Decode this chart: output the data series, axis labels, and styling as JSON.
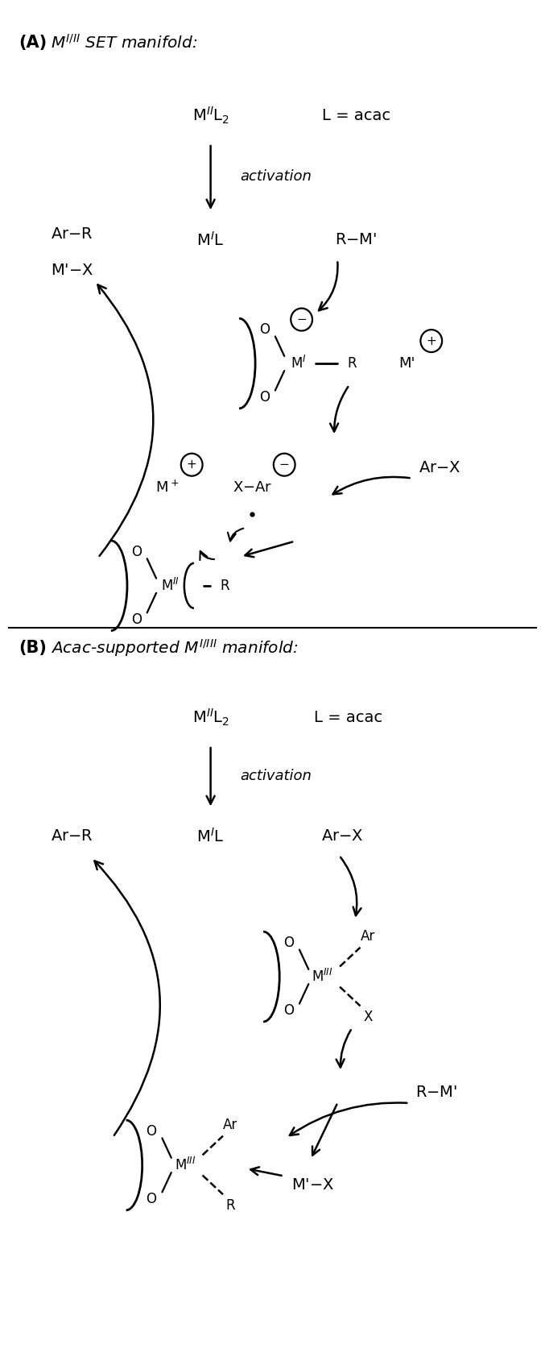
{
  "fig_width": 6.77,
  "fig_height": 16.84,
  "dpi": 100,
  "bg_color": "#ffffff",
  "xlim": [
    0,
    10
  ],
  "ylim": [
    0,
    24
  ]
}
